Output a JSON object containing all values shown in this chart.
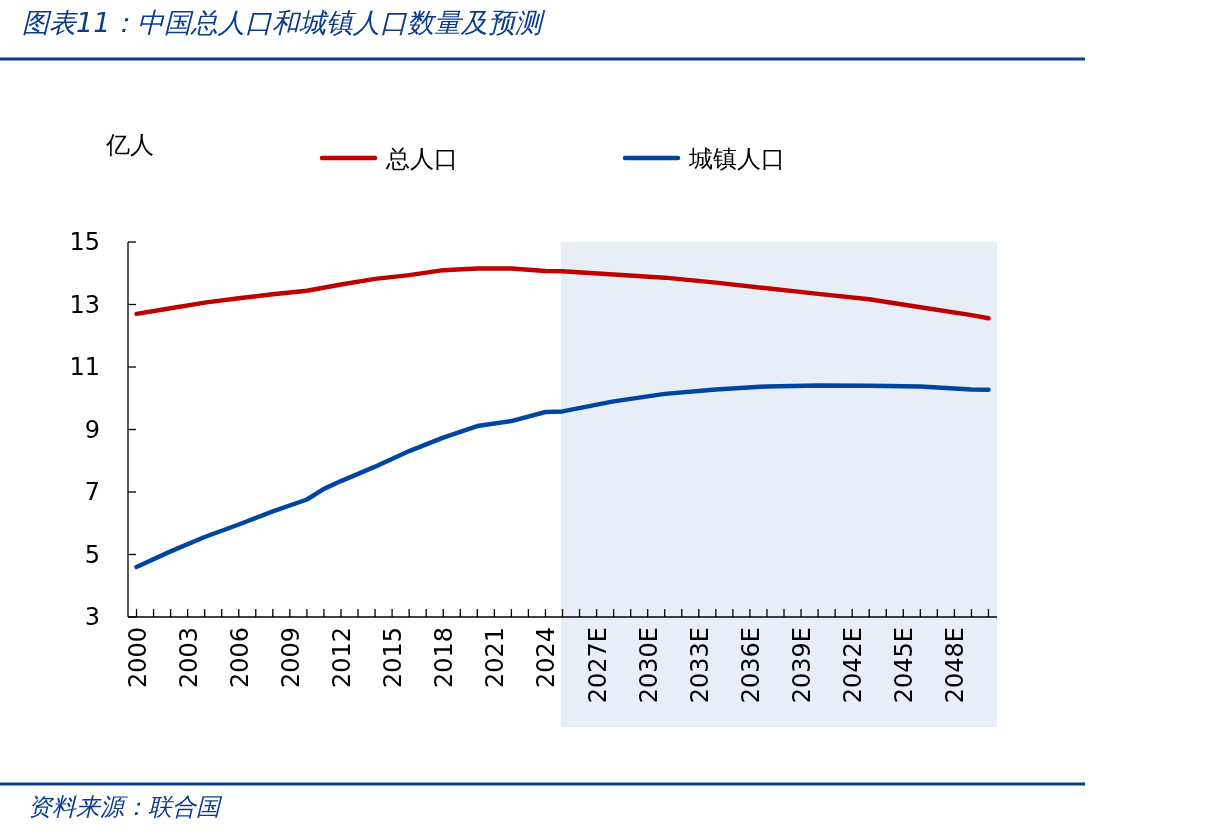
{
  "chart_data": {
    "type": "line",
    "title": "图表11：中国总人口和城镇人口数量及预测",
    "ylabel": "亿人",
    "series": [
      {
        "name": "总人口",
        "color": "#c00000",
        "x": [
          2000,
          2002,
          2004,
          2006,
          2008,
          2010,
          2012,
          2014,
          2016,
          2018,
          2020,
          2022,
          2024,
          2025,
          2028,
          2031,
          2034,
          2037,
          2040,
          2043,
          2046,
          2049,
          2050
        ],
        "values": [
          12.7,
          12.88,
          13.06,
          13.2,
          13.33,
          13.44,
          13.64,
          13.82,
          13.94,
          14.1,
          14.15,
          14.15,
          14.07,
          14.06,
          13.96,
          13.86,
          13.7,
          13.52,
          13.34,
          13.17,
          12.91,
          12.66,
          12.56
        ]
      },
      {
        "name": "城镇人口",
        "color": "#0046a0",
        "x": [
          2000,
          2002,
          2004,
          2006,
          2008,
          2010,
          2011,
          2012,
          2014,
          2016,
          2018,
          2020,
          2022,
          2024,
          2025,
          2028,
          2031,
          2034,
          2037,
          2040,
          2043,
          2046,
          2049,
          2050
        ],
        "values": [
          4.6,
          5.1,
          5.56,
          5.96,
          6.38,
          6.76,
          7.1,
          7.35,
          7.81,
          8.31,
          8.74,
          9.11,
          9.27,
          9.56,
          9.58,
          9.9,
          10.14,
          10.28,
          10.38,
          10.41,
          10.4,
          10.38,
          10.28,
          10.27
        ]
      }
    ],
    "xlim": [
      1999.5,
      2050.5
    ],
    "ylim": [
      3,
      15
    ],
    "yticks": [
      3,
      5,
      7,
      9,
      11,
      13,
      15
    ],
    "xticks": [
      {
        "value": 2000,
        "label": "2000"
      },
      {
        "value": 2001,
        "label": null
      },
      {
        "value": 2002,
        "label": null
      },
      {
        "value": 2003,
        "label": "2003"
      },
      {
        "value": 2004,
        "label": null
      },
      {
        "value": 2005,
        "label": null
      },
      {
        "value": 2006,
        "label": "2006"
      },
      {
        "value": 2007,
        "label": null
      },
      {
        "value": 2008,
        "label": null
      },
      {
        "value": 2009,
        "label": "2009"
      },
      {
        "value": 2010,
        "label": null
      },
      {
        "value": 2011,
        "label": null
      },
      {
        "value": 2012,
        "label": "2012"
      },
      {
        "value": 2013,
        "label": null
      },
      {
        "value": 2014,
        "label": null
      },
      {
        "value": 2015,
        "label": "2015"
      },
      {
        "value": 2016,
        "label": null
      },
      {
        "value": 2017,
        "label": null
      },
      {
        "value": 2018,
        "label": "2018"
      },
      {
        "value": 2019,
        "label": null
      },
      {
        "value": 2020,
        "label": null
      },
      {
        "value": 2021,
        "label": "2021"
      },
      {
        "value": 2022,
        "label": null
      },
      {
        "value": 2023,
        "label": null
      },
      {
        "value": 2024,
        "label": "2024"
      },
      {
        "value": 2025,
        "label": null
      },
      {
        "value": 2026,
        "label": null
      },
      {
        "value": 2027,
        "label": "2027E"
      },
      {
        "value": 2028,
        "label": null
      },
      {
        "value": 2029,
        "label": null
      },
      {
        "value": 2030,
        "label": "2030E"
      },
      {
        "value": 2031,
        "label": null
      },
      {
        "value": 2032,
        "label": null
      },
      {
        "value": 2033,
        "label": "2033E"
      },
      {
        "value": 2034,
        "label": null
      },
      {
        "value": 2035,
        "label": null
      },
      {
        "value": 2036,
        "label": "2036E"
      },
      {
        "value": 2037,
        "label": null
      },
      {
        "value": 2038,
        "label": null
      },
      {
        "value": 2039,
        "label": "2039E"
      },
      {
        "value": 2040,
        "label": null
      },
      {
        "value": 2041,
        "label": null
      },
      {
        "value": 2042,
        "label": "2042E"
      },
      {
        "value": 2043,
        "label": null
      },
      {
        "value": 2044,
        "label": null
      },
      {
        "value": 2045,
        "label": "2045E"
      },
      {
        "value": 2046,
        "label": null
      },
      {
        "value": 2047,
        "label": null
      },
      {
        "value": 2048,
        "label": "2048E"
      },
      {
        "value": 2049,
        "label": null
      },
      {
        "value": 2050,
        "label": null
      }
    ],
    "bands": [
      {
        "axis": "x",
        "from": 2024.9,
        "to": 2050.5,
        "color": "#e8eef7"
      }
    ],
    "legend": "top",
    "annotations": [
      "资料来源：联合国"
    ]
  }
}
